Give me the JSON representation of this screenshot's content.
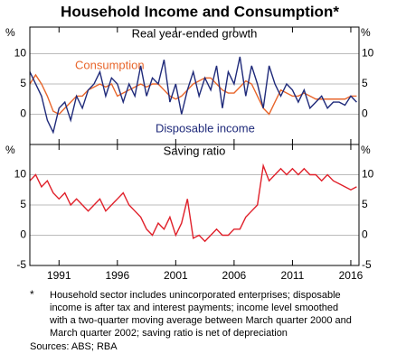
{
  "title": "Household Income and Consumption*",
  "chart_data": [
    {
      "type": "line",
      "subtitle": "Real year-ended growth",
      "y_unit": "%",
      "xlim": [
        1988.5,
        2016.7
      ],
      "ylim": [
        -5,
        14.4
      ],
      "yticks": [
        0,
        5,
        10
      ],
      "grid": true,
      "x": [
        1988.5,
        1989,
        1989.5,
        1990,
        1990.5,
        1991,
        1991.5,
        1992,
        1992.5,
        1993,
        1993.5,
        1994,
        1994.5,
        1995,
        1995.5,
        1996,
        1996.5,
        1997,
        1997.5,
        1998,
        1998.5,
        1999,
        1999.5,
        2000,
        2000.5,
        2001,
        2001.5,
        2002,
        2002.5,
        2003,
        2003.5,
        2004,
        2004.5,
        2005,
        2005.5,
        2006,
        2006.5,
        2007,
        2007.5,
        2008,
        2008.5,
        2009,
        2009.5,
        2010,
        2010.5,
        2011,
        2011.5,
        2012,
        2012.5,
        2013,
        2013.5,
        2014,
        2014.5,
        2015,
        2015.5,
        2016,
        2016.5
      ],
      "series": [
        {
          "name": "Consumption",
          "color": "#e8662c",
          "values": [
            5,
            6.5,
            5,
            3,
            0.5,
            0,
            1,
            2,
            3,
            3,
            4,
            4.5,
            5,
            4.5,
            5,
            3,
            3.5,
            4,
            4.5,
            5,
            4.5,
            5,
            5,
            4,
            3,
            2.5,
            3,
            4,
            5,
            5.5,
            6,
            6,
            5,
            4,
            3.5,
            3.5,
            4.5,
            5.5,
            5,
            3,
            1,
            0,
            2,
            4,
            3.5,
            3,
            3,
            3.5,
            3,
            2.5,
            2.5,
            2.5,
            2.5,
            2.5,
            2.5,
            3,
            3
          ]
        },
        {
          "name": "Disposable income",
          "color": "#1f2a7a",
          "values": [
            7,
            5,
            3,
            -1,
            -3,
            1,
            2,
            -1,
            3,
            1,
            4,
            5,
            7,
            3,
            6,
            5,
            2,
            5,
            3,
            8,
            3,
            6,
            5,
            9,
            2,
            5,
            0,
            4,
            7,
            3,
            6,
            4,
            8,
            1,
            7,
            5,
            9.5,
            3,
            8,
            5,
            1,
            8,
            5,
            3,
            5,
            4,
            2,
            4,
            1,
            2,
            3,
            1,
            2,
            2,
            1.5,
            3,
            2
          ]
        }
      ]
    },
    {
      "type": "line",
      "subtitle": "Saving ratio",
      "y_unit": "%",
      "xlim": [
        1988.5,
        2016.7
      ],
      "ylim": [
        -5,
        15
      ],
      "yticks": [
        -5,
        0,
        5,
        10
      ],
      "grid": true,
      "xticks": [
        1991,
        1996,
        2001,
        2006,
        2011,
        2016
      ],
      "x": [
        1988.5,
        1989,
        1989.5,
        1990,
        1990.5,
        1991,
        1991.5,
        1992,
        1992.5,
        1993,
        1993.5,
        1994,
        1994.5,
        1995,
        1995.5,
        1996,
        1996.5,
        1997,
        1997.5,
        1998,
        1998.5,
        1999,
        1999.5,
        2000,
        2000.5,
        2001,
        2001.5,
        2002,
        2002.5,
        2003,
        2003.5,
        2004,
        2004.5,
        2005,
        2005.5,
        2006,
        2006.5,
        2007,
        2007.5,
        2008,
        2008.5,
        2009,
        2009.5,
        2010,
        2010.5,
        2011,
        2011.5,
        2012,
        2012.5,
        2013,
        2013.5,
        2014,
        2014.5,
        2015,
        2015.5,
        2016,
        2016.5
      ],
      "series": [
        {
          "name": "Saving ratio",
          "color": "#e0202a",
          "values": [
            9,
            10,
            8,
            9,
            7,
            6,
            7,
            5,
            6,
            5,
            4,
            5,
            6,
            4,
            5,
            6,
            7,
            5,
            4,
            3,
            1,
            0,
            2,
            1,
            3,
            0,
            2,
            6,
            -0.5,
            0,
            -1,
            0,
            1,
            0,
            0,
            1,
            1,
            3,
            4,
            5,
            11.5,
            9,
            10,
            11,
            10,
            11,
            10,
            11,
            10,
            10,
            9,
            10,
            9,
            8.5,
            8,
            7.5,
            8
          ]
        }
      ]
    }
  ],
  "notes": {
    "marker": "*",
    "footnote": [
      "Household sector includes unincorporated enterprises; disposable",
      "income is after tax and interest payments; income level smoothed",
      "with a two-quarter moving average between March quarter 2000 and",
      "March quarter 2002; saving ratio is net of depreciation"
    ],
    "sources": "Sources: ABS; RBA"
  }
}
